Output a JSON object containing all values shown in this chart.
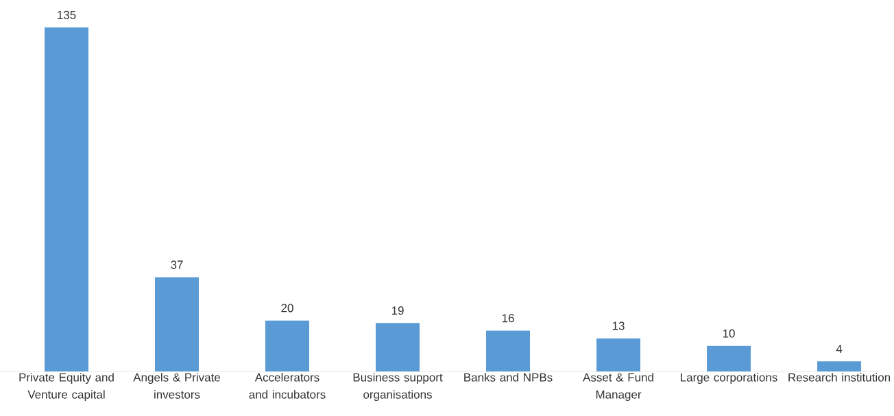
{
  "chart_data": {
    "type": "bar",
    "categories": [
      "Private Equity and Venture capital",
      "Angels & Private investors",
      "Accelerators and incubators",
      "Business support organisations",
      "Banks and NPBs",
      "Asset & Fund Manager",
      "Large corporations",
      "Research institution"
    ],
    "values": [
      135,
      37,
      20,
      19,
      16,
      13,
      10,
      4
    ],
    "color": "#5b9bd5",
    "data_labels": true
  }
}
